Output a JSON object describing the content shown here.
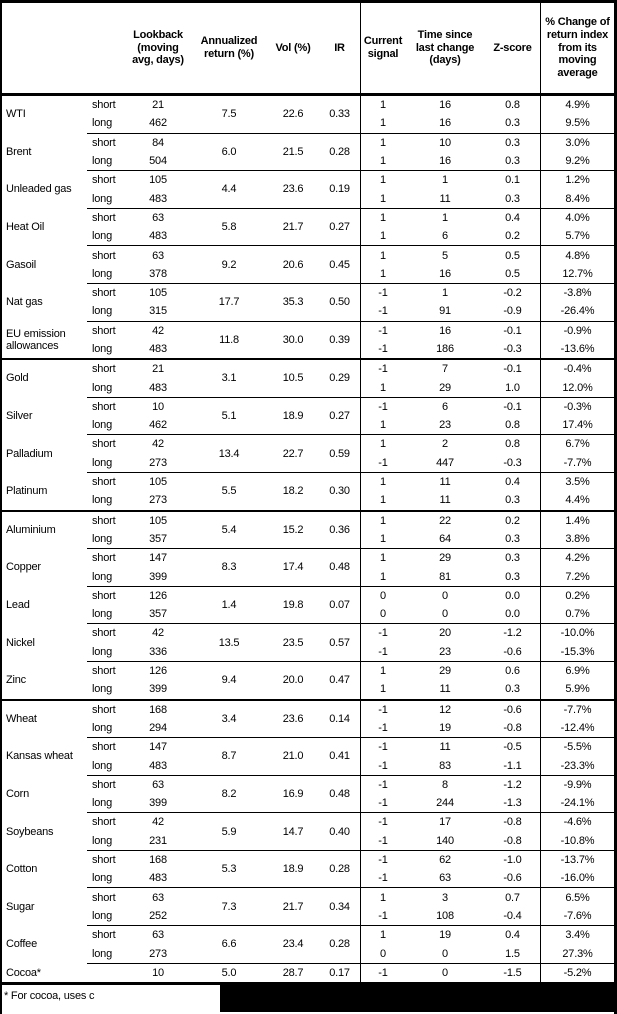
{
  "table": {
    "columns": [
      {
        "id": "commodity",
        "label": ""
      },
      {
        "id": "horizon",
        "label": ""
      },
      {
        "id": "lookback",
        "label": "Lookback\n(moving\navg, days)"
      },
      {
        "id": "annualized_return",
        "label": "Annualized\nreturn (%)"
      },
      {
        "id": "vol",
        "label": "Vol (%)"
      },
      {
        "id": "ir",
        "label": "IR"
      },
      {
        "id": "current_signal",
        "label": "Current\nsignal"
      },
      {
        "id": "time_since",
        "label": "Time since\nlast change\n(days)"
      },
      {
        "id": "z_score",
        "label": "Z-score"
      },
      {
        "id": "pct_change",
        "label": "% Change of\nreturn index\nfrom its\nmoving\naverage"
      }
    ],
    "groups": [
      {
        "name": "WTI",
        "annualized_return": "7.5",
        "vol": "22.6",
        "ir": "0.33",
        "sep_after": "thin",
        "rows": [
          {
            "term": "short",
            "lookback": "21",
            "signal": "1",
            "time_since": "16",
            "z_score": "0.8",
            "pct_change": "4.9%"
          },
          {
            "term": "long",
            "lookback": "462",
            "signal": "1",
            "time_since": "16",
            "z_score": "0.3",
            "pct_change": "9.5%"
          }
        ]
      },
      {
        "name": "Brent",
        "annualized_return": "6.0",
        "vol": "21.5",
        "ir": "0.28",
        "sep_after": "thin",
        "rows": [
          {
            "term": "short",
            "lookback": "84",
            "signal": "1",
            "time_since": "10",
            "z_score": "0.3",
            "pct_change": "3.0%"
          },
          {
            "term": "long",
            "lookback": "504",
            "signal": "1",
            "time_since": "16",
            "z_score": "0.3",
            "pct_change": "9.2%"
          }
        ]
      },
      {
        "name": "Unleaded gas",
        "annualized_return": "4.4",
        "vol": "23.6",
        "ir": "0.19",
        "sep_after": "thin",
        "rows": [
          {
            "term": "short",
            "lookback": "105",
            "signal": "1",
            "time_since": "1",
            "z_score": "0.1",
            "pct_change": "1.2%"
          },
          {
            "term": "long",
            "lookback": "483",
            "signal": "1",
            "time_since": "11",
            "z_score": "0.3",
            "pct_change": "8.4%"
          }
        ]
      },
      {
        "name": "Heat Oil",
        "annualized_return": "5.8",
        "vol": "21.7",
        "ir": "0.27",
        "sep_after": "thin",
        "rows": [
          {
            "term": "short",
            "lookback": "63",
            "signal": "1",
            "time_since": "1",
            "z_score": "0.4",
            "pct_change": "4.0%"
          },
          {
            "term": "long",
            "lookback": "483",
            "signal": "1",
            "time_since": "6",
            "z_score": "0.2",
            "pct_change": "5.7%"
          }
        ]
      },
      {
        "name": "Gasoil",
        "annualized_return": "9.2",
        "vol": "20.6",
        "ir": "0.45",
        "sep_after": "thin",
        "rows": [
          {
            "term": "short",
            "lookback": "63",
            "signal": "1",
            "time_since": "5",
            "z_score": "0.5",
            "pct_change": "4.8%"
          },
          {
            "term": "long",
            "lookback": "378",
            "signal": "1",
            "time_since": "16",
            "z_score": "0.5",
            "pct_change": "12.7%"
          }
        ]
      },
      {
        "name": "Nat gas",
        "annualized_return": "17.7",
        "vol": "35.3",
        "ir": "0.50",
        "sep_after": "thin",
        "rows": [
          {
            "term": "short",
            "lookback": "105",
            "signal": "-1",
            "time_since": "1",
            "z_score": "-0.2",
            "pct_change": "-3.8%"
          },
          {
            "term": "long",
            "lookback": "315",
            "signal": "-1",
            "time_since": "91",
            "z_score": "-0.9",
            "pct_change": "-26.4%"
          }
        ]
      },
      {
        "name": "EU emission\nallowances",
        "annualized_return": "11.8",
        "vol": "30.0",
        "ir": "0.39",
        "sep_after": "thick",
        "rows": [
          {
            "term": "short",
            "lookback": "42",
            "signal": "-1",
            "time_since": "16",
            "z_score": "-0.1",
            "pct_change": "-0.9%"
          },
          {
            "term": "long",
            "lookback": "483",
            "signal": "-1",
            "time_since": "186",
            "z_score": "-0.3",
            "pct_change": "-13.6%"
          }
        ]
      },
      {
        "name": "Gold",
        "annualized_return": "3.1",
        "vol": "10.5",
        "ir": "0.29",
        "sep_after": "thin",
        "rows": [
          {
            "term": "short",
            "lookback": "21",
            "signal": "-1",
            "time_since": "7",
            "z_score": "-0.1",
            "pct_change": "-0.4%"
          },
          {
            "term": "long",
            "lookback": "483",
            "signal": "1",
            "time_since": "29",
            "z_score": "1.0",
            "pct_change": "12.0%"
          }
        ]
      },
      {
        "name": "Silver",
        "annualized_return": "5.1",
        "vol": "18.9",
        "ir": "0.27",
        "sep_after": "thin",
        "rows": [
          {
            "term": "short",
            "lookback": "10",
            "signal": "-1",
            "time_since": "6",
            "z_score": "-0.1",
            "pct_change": "-0.3%"
          },
          {
            "term": "long",
            "lookback": "462",
            "signal": "1",
            "time_since": "23",
            "z_score": "0.8",
            "pct_change": "17.4%"
          }
        ]
      },
      {
        "name": "Palladium",
        "annualized_return": "13.4",
        "vol": "22.7",
        "ir": "0.59",
        "sep_after": "thin",
        "rows": [
          {
            "term": "short",
            "lookback": "42",
            "signal": "1",
            "time_since": "2",
            "z_score": "0.8",
            "pct_change": "6.7%"
          },
          {
            "term": "long",
            "lookback": "273",
            "signal": "-1",
            "time_since": "447",
            "z_score": "-0.3",
            "pct_change": "-7.7%"
          }
        ]
      },
      {
        "name": "Platinum",
        "annualized_return": "5.5",
        "vol": "18.2",
        "ir": "0.30",
        "sep_after": "thick",
        "rows": [
          {
            "term": "short",
            "lookback": "105",
            "signal": "1",
            "time_since": "11",
            "z_score": "0.4",
            "pct_change": "3.5%"
          },
          {
            "term": "long",
            "lookback": "273",
            "signal": "1",
            "time_since": "11",
            "z_score": "0.3",
            "pct_change": "4.4%"
          }
        ]
      },
      {
        "name": "Aluminium",
        "annualized_return": "5.4",
        "vol": "15.2",
        "ir": "0.36",
        "sep_after": "thin",
        "rows": [
          {
            "term": "short",
            "lookback": "105",
            "signal": "1",
            "time_since": "22",
            "z_score": "0.2",
            "pct_change": "1.4%"
          },
          {
            "term": "long",
            "lookback": "357",
            "signal": "1",
            "time_since": "64",
            "z_score": "0.3",
            "pct_change": "3.8%"
          }
        ]
      },
      {
        "name": "Copper",
        "annualized_return": "8.3",
        "vol": "17.4",
        "ir": "0.48",
        "sep_after": "thin",
        "rows": [
          {
            "term": "short",
            "lookback": "147",
            "signal": "1",
            "time_since": "29",
            "z_score": "0.3",
            "pct_change": "4.2%"
          },
          {
            "term": "long",
            "lookback": "399",
            "signal": "1",
            "time_since": "81",
            "z_score": "0.3",
            "pct_change": "7.2%"
          }
        ]
      },
      {
        "name": "Lead",
        "annualized_return": "1.4",
        "vol": "19.8",
        "ir": "0.07",
        "sep_after": "thin",
        "rows": [
          {
            "term": "short",
            "lookback": "126",
            "signal": "0",
            "time_since": "0",
            "z_score": "0.0",
            "pct_change": "0.2%"
          },
          {
            "term": "long",
            "lookback": "357",
            "signal": "0",
            "time_since": "0",
            "z_score": "0.0",
            "pct_change": "0.7%"
          }
        ]
      },
      {
        "name": "Nickel",
        "annualized_return": "13.5",
        "vol": "23.5",
        "ir": "0.57",
        "sep_after": "thin",
        "rows": [
          {
            "term": "short",
            "lookback": "42",
            "signal": "-1",
            "time_since": "20",
            "z_score": "-1.2",
            "pct_change": "-10.0%"
          },
          {
            "term": "long",
            "lookback": "336",
            "signal": "-1",
            "time_since": "23",
            "z_score": "-0.6",
            "pct_change": "-15.3%"
          }
        ]
      },
      {
        "name": "Zinc",
        "annualized_return": "9.4",
        "vol": "20.0",
        "ir": "0.47",
        "sep_after": "thick",
        "rows": [
          {
            "term": "short",
            "lookback": "126",
            "signal": "1",
            "time_since": "29",
            "z_score": "0.6",
            "pct_change": "6.9%"
          },
          {
            "term": "long",
            "lookback": "399",
            "signal": "1",
            "time_since": "11",
            "z_score": "0.3",
            "pct_change": "5.9%"
          }
        ]
      },
      {
        "name": "Wheat",
        "annualized_return": "3.4",
        "vol": "23.6",
        "ir": "0.14",
        "sep_after": "thin",
        "rows": [
          {
            "term": "short",
            "lookback": "168",
            "signal": "-1",
            "time_since": "12",
            "z_score": "-0.6",
            "pct_change": "-7.7%"
          },
          {
            "term": "long",
            "lookback": "294",
            "signal": "-1",
            "time_since": "19",
            "z_score": "-0.8",
            "pct_change": "-12.4%"
          }
        ]
      },
      {
        "name": "Kansas wheat",
        "annualized_return": "8.7",
        "vol": "21.0",
        "ir": "0.41",
        "sep_after": "thin",
        "rows": [
          {
            "term": "short",
            "lookback": "147",
            "signal": "-1",
            "time_since": "11",
            "z_score": "-0.5",
            "pct_change": "-5.5%"
          },
          {
            "term": "long",
            "lookback": "483",
            "signal": "-1",
            "time_since": "83",
            "z_score": "-1.1",
            "pct_change": "-23.3%"
          }
        ]
      },
      {
        "name": "Corn",
        "annualized_return": "8.2",
        "vol": "16.9",
        "ir": "0.48",
        "sep_after": "thin",
        "rows": [
          {
            "term": "short",
            "lookback": "63",
            "signal": "-1",
            "time_since": "8",
            "z_score": "-1.2",
            "pct_change": "-9.9%"
          },
          {
            "term": "long",
            "lookback": "399",
            "signal": "-1",
            "time_since": "244",
            "z_score": "-1.3",
            "pct_change": "-24.1%"
          }
        ]
      },
      {
        "name": "Soybeans",
        "annualized_return": "5.9",
        "vol": "14.7",
        "ir": "0.40",
        "sep_after": "thin",
        "rows": [
          {
            "term": "short",
            "lookback": "42",
            "signal": "-1",
            "time_since": "17",
            "z_score": "-0.8",
            "pct_change": "-4.6%"
          },
          {
            "term": "long",
            "lookback": "231",
            "signal": "-1",
            "time_since": "140",
            "z_score": "-0.8",
            "pct_change": "-10.8%"
          }
        ]
      },
      {
        "name": "Cotton",
        "annualized_return": "5.3",
        "vol": "18.9",
        "ir": "0.28",
        "sep_after": "thin",
        "rows": [
          {
            "term": "short",
            "lookback": "168",
            "signal": "-1",
            "time_since": "62",
            "z_score": "-1.0",
            "pct_change": "-13.7%"
          },
          {
            "term": "long",
            "lookback": "483",
            "signal": "-1",
            "time_since": "63",
            "z_score": "-0.6",
            "pct_change": "-16.0%"
          }
        ]
      },
      {
        "name": "Sugar",
        "annualized_return": "7.3",
        "vol": "21.7",
        "ir": "0.34",
        "sep_after": "thin",
        "rows": [
          {
            "term": "short",
            "lookback": "63",
            "signal": "1",
            "time_since": "3",
            "z_score": "0.7",
            "pct_change": "6.5%"
          },
          {
            "term": "long",
            "lookback": "252",
            "signal": "-1",
            "time_since": "108",
            "z_score": "-0.4",
            "pct_change": "-7.6%"
          }
        ]
      },
      {
        "name": "Coffee",
        "annualized_return": "6.6",
        "vol": "23.4",
        "ir": "0.28",
        "sep_after": "thin",
        "rows": [
          {
            "term": "short",
            "lookback": "63",
            "signal": "1",
            "time_since": "19",
            "z_score": "0.4",
            "pct_change": "3.4%"
          },
          {
            "term": "long",
            "lookback": "273",
            "signal": "0",
            "time_since": "0",
            "z_score": "1.5",
            "pct_change": "27.3%"
          }
        ]
      },
      {
        "name": "Cocoa*",
        "annualized_return": "5.0",
        "vol": "28.7",
        "ir": "0.17",
        "sep_after": "bottom",
        "rows": [
          {
            "term": "",
            "lookback": "10",
            "signal": "-1",
            "time_since": "0",
            "z_score": "-1.5",
            "pct_change": "-5.2%"
          }
        ]
      }
    ],
    "footnote": "* For cocoa, uses c"
  },
  "colors": {
    "background": "#ffffff",
    "text": "#000000",
    "border": "#000000",
    "redaction": "#000000"
  }
}
